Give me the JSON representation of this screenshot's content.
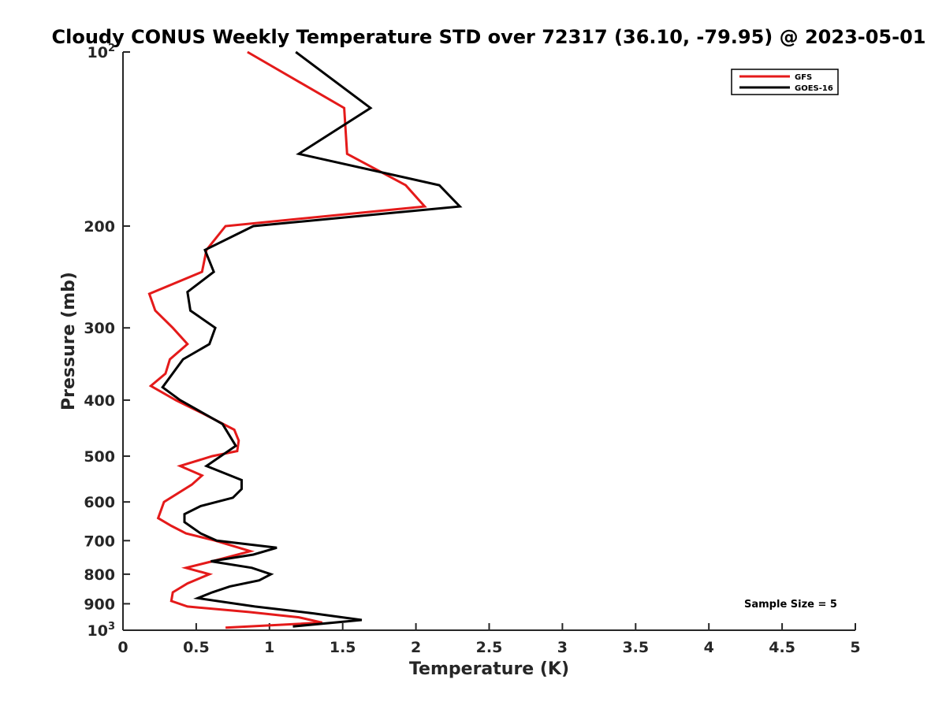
{
  "chart_data": {
    "type": "line",
    "title": "Cloudy CONUS Weekly Temperature STD over 72317 (36.10, -79.95) @ 2023-05-01",
    "xlabel": "Temperature (K)",
    "ylabel": "Pressure (mb)",
    "xlim": [
      0,
      5
    ],
    "ylim": [
      100,
      1000
    ],
    "y_scale": "log",
    "y_reversed": true,
    "grid": false,
    "legend_position": "top-right",
    "x_ticks": [
      0,
      0.5,
      1,
      1.5,
      2,
      2.5,
      3,
      3.5,
      4,
      4.5,
      5
    ],
    "x_tick_labels": [
      "0",
      "0.5",
      "1",
      "1.5",
      "2",
      "2.5",
      "3",
      "3.5",
      "4",
      "4.5",
      "5"
    ],
    "y_ticks": [
      {
        "value": 100,
        "base": "10",
        "exp": "2"
      },
      {
        "value": 200,
        "label": "200"
      },
      {
        "value": 300,
        "label": "300"
      },
      {
        "value": 400,
        "label": "400"
      },
      {
        "value": 500,
        "label": "500"
      },
      {
        "value": 600,
        "label": "600"
      },
      {
        "value": 700,
        "label": "700"
      },
      {
        "value": 800,
        "label": "800"
      },
      {
        "value": 900,
        "label": "900"
      },
      {
        "value": 1000,
        "base": "10",
        "exp": "3"
      }
    ],
    "series": [
      {
        "name": "GFS",
        "color": "#e41a1a",
        "points": [
          [
            0.85,
            100
          ],
          [
            1.51,
            125
          ],
          [
            1.53,
            150
          ],
          [
            1.93,
            170
          ],
          [
            2.06,
            185
          ],
          [
            0.7,
            200
          ],
          [
            0.57,
            220
          ],
          [
            0.54,
            240
          ],
          [
            0.18,
            262
          ],
          [
            0.22,
            280
          ],
          [
            0.34,
            300
          ],
          [
            0.44,
            320
          ],
          [
            0.32,
            340
          ],
          [
            0.29,
            360
          ],
          [
            0.19,
            378
          ],
          [
            0.36,
            400
          ],
          [
            0.53,
            420
          ],
          [
            0.76,
            450
          ],
          [
            0.79,
            470
          ],
          [
            0.78,
            490
          ],
          [
            0.61,
            500
          ],
          [
            0.39,
            520
          ],
          [
            0.54,
            540
          ],
          [
            0.47,
            560
          ],
          [
            0.28,
            600
          ],
          [
            0.24,
            640
          ],
          [
            0.33,
            660
          ],
          [
            0.43,
            680
          ],
          [
            0.63,
            700
          ],
          [
            0.87,
            730
          ],
          [
            0.61,
            760
          ],
          [
            0.43,
            780
          ],
          [
            0.59,
            800
          ],
          [
            0.44,
            830
          ],
          [
            0.34,
            860
          ],
          [
            0.33,
            890
          ],
          [
            0.44,
            910
          ],
          [
            0.86,
            930
          ],
          [
            1.2,
            950
          ],
          [
            1.36,
            970
          ],
          [
            0.7,
            990
          ]
        ]
      },
      {
        "name": "GOES-16",
        "color": "#000000",
        "points": [
          [
            1.18,
            100
          ],
          [
            1.69,
            125
          ],
          [
            1.2,
            150
          ],
          [
            2.16,
            170
          ],
          [
            2.3,
            185
          ],
          [
            0.89,
            200
          ],
          [
            0.56,
            220
          ],
          [
            0.62,
            240
          ],
          [
            0.44,
            260
          ],
          [
            0.46,
            280
          ],
          [
            0.63,
            300
          ],
          [
            0.59,
            320
          ],
          [
            0.41,
            340
          ],
          [
            0.27,
            380
          ],
          [
            0.39,
            400
          ],
          [
            0.68,
            440
          ],
          [
            0.77,
            480
          ],
          [
            0.57,
            520
          ],
          [
            0.81,
            550
          ],
          [
            0.81,
            570
          ],
          [
            0.75,
            590
          ],
          [
            0.53,
            610
          ],
          [
            0.42,
            630
          ],
          [
            0.42,
            650
          ],
          [
            0.53,
            680
          ],
          [
            0.64,
            700
          ],
          [
            1.05,
            720
          ],
          [
            0.89,
            740
          ],
          [
            0.6,
            760
          ],
          [
            0.88,
            780
          ],
          [
            1.01,
            800
          ],
          [
            0.93,
            820
          ],
          [
            0.73,
            840
          ],
          [
            0.61,
            860
          ],
          [
            0.51,
            880
          ],
          [
            0.9,
            910
          ],
          [
            1.3,
            935
          ],
          [
            1.63,
            960
          ],
          [
            1.16,
            985
          ]
        ]
      }
    ],
    "annotation": "Sample Size = 5"
  }
}
